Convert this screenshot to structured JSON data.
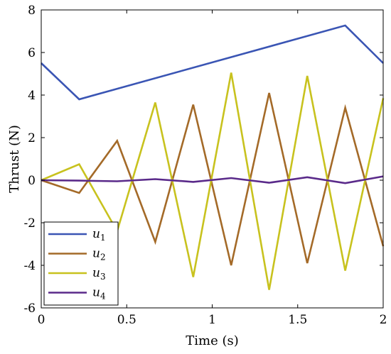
{
  "chart_data": {
    "type": "line",
    "title": "",
    "xlabel": "Time (s)",
    "ylabel": "Thrust (N)",
    "xlim": [
      0,
      2
    ],
    "ylim": [
      -6,
      8
    ],
    "xticks": [
      0,
      0.5,
      1,
      1.5,
      2
    ],
    "xtick_labels": [
      "0",
      "0.5",
      "1",
      "1.5",
      "2"
    ],
    "yticks": [
      -6,
      -4,
      -2,
      0,
      2,
      4,
      6,
      8
    ],
    "ytick_labels": [
      "-6",
      "-4",
      "-2",
      "0",
      "2",
      "4",
      "6",
      "8"
    ],
    "grid": false,
    "legend_position": "bottom-left",
    "series": [
      {
        "name": "u1",
        "label_base": "u",
        "label_sub": "1",
        "color": "#3A55B4",
        "x": [
          0,
          0.222,
          1.778,
          2.0
        ],
        "y": [
          5.5,
          3.8,
          7.27,
          5.5
        ]
      },
      {
        "name": "u2",
        "label_base": "u",
        "label_sub": "2",
        "color": "#A46A28",
        "x": [
          0,
          0.222,
          0.444,
          0.667,
          0.889,
          1.111,
          1.333,
          1.556,
          1.778,
          2.0
        ],
        "y": [
          0,
          -0.6,
          1.85,
          -2.9,
          3.55,
          -4.0,
          4.1,
          -3.9,
          3.4,
          -3.1
        ]
      },
      {
        "name": "u3",
        "label_base": "u",
        "label_sub": "3",
        "color": "#C8C21E",
        "x": [
          0,
          0.222,
          0.444,
          0.667,
          0.889,
          1.111,
          1.333,
          1.556,
          1.778,
          2.0
        ],
        "y": [
          0,
          0.75,
          -2.4,
          3.65,
          -4.55,
          5.05,
          -5.15,
          4.9,
          -4.25,
          3.85
        ]
      },
      {
        "name": "u4",
        "label_base": "u",
        "label_sub": "4",
        "color": "#5A2A8A",
        "x": [
          0,
          0.222,
          0.444,
          0.667,
          0.889,
          1.111,
          1.333,
          1.556,
          1.778,
          2.0
        ],
        "y": [
          0,
          -0.02,
          -0.05,
          0.05,
          -0.08,
          0.1,
          -0.12,
          0.14,
          -0.14,
          0.18
        ]
      }
    ]
  }
}
